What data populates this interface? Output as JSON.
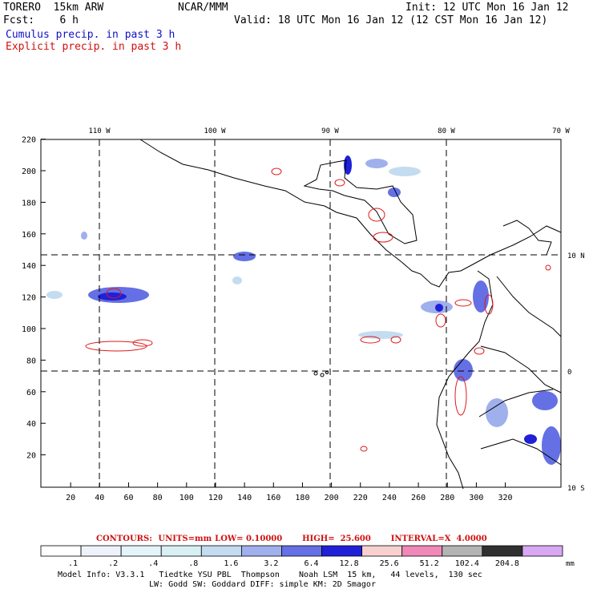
{
  "header": {
    "model": "TORERO  15km ARW",
    "center": "NCAR/MMM",
    "init": "Init: 12 UTC Mon 16 Jan 12",
    "fcst": "Fcst:    6 h",
    "valid": "Valid: 18 UTC Mon 16 Jan 12 (12 CST Mon 16 Jan 12)",
    "cumulus": "Cumulus precip. in past 3 h",
    "explicit": "Explicit precip. in past 3 h"
  },
  "axes": {
    "x_grid_ticks": [
      "20",
      "40",
      "60",
      "80",
      "100",
      "120",
      "140",
      "160",
      "180",
      "200",
      "220",
      "240",
      "260",
      "280",
      "300",
      "320"
    ],
    "y_grid_ticks": [
      "20",
      "40",
      "60",
      "80",
      "100",
      "120",
      "140",
      "160",
      "180",
      "200",
      "220"
    ],
    "lon_labels": [
      "110 W",
      "100 W",
      "90 W",
      "80 W",
      "70 W"
    ],
    "lat_labels": [
      "10 N",
      "0",
      "10 S"
    ]
  },
  "contours": {
    "label": "CONTOURS:",
    "units": "UNITS=mm",
    "low": "LOW= 0.10000",
    "high": "HIGH=  25.600",
    "interval": "INTERVAL=X  4.0000"
  },
  "colorbar": {
    "levels": [
      ".1",
      ".2",
      ".4",
      ".8",
      "1.6",
      "3.2",
      "6.4",
      "12.8",
      "25.6",
      "51.2",
      "102.4",
      "204.8"
    ],
    "colors": [
      "#ffffff",
      "#eef3fb",
      "#e4f4f8",
      "#d8f0f4",
      "#c4dcf0",
      "#9fb0ec",
      "#6470e4",
      "#2020d8",
      "#f8d0d0",
      "#f088b8",
      "#b4b4b4",
      "#303030",
      "#d8a8f4"
    ],
    "unit": "mm"
  },
  "model_info": {
    "line1": "Model Info: V3.3.1   Tiedtke YSU PBL  Thompson    Noah LSM  15 km,   44 levels,  130 sec",
    "line2": "LW: Godd SW: Goddard DIFF: simple KM: 2D Smagor"
  }
}
